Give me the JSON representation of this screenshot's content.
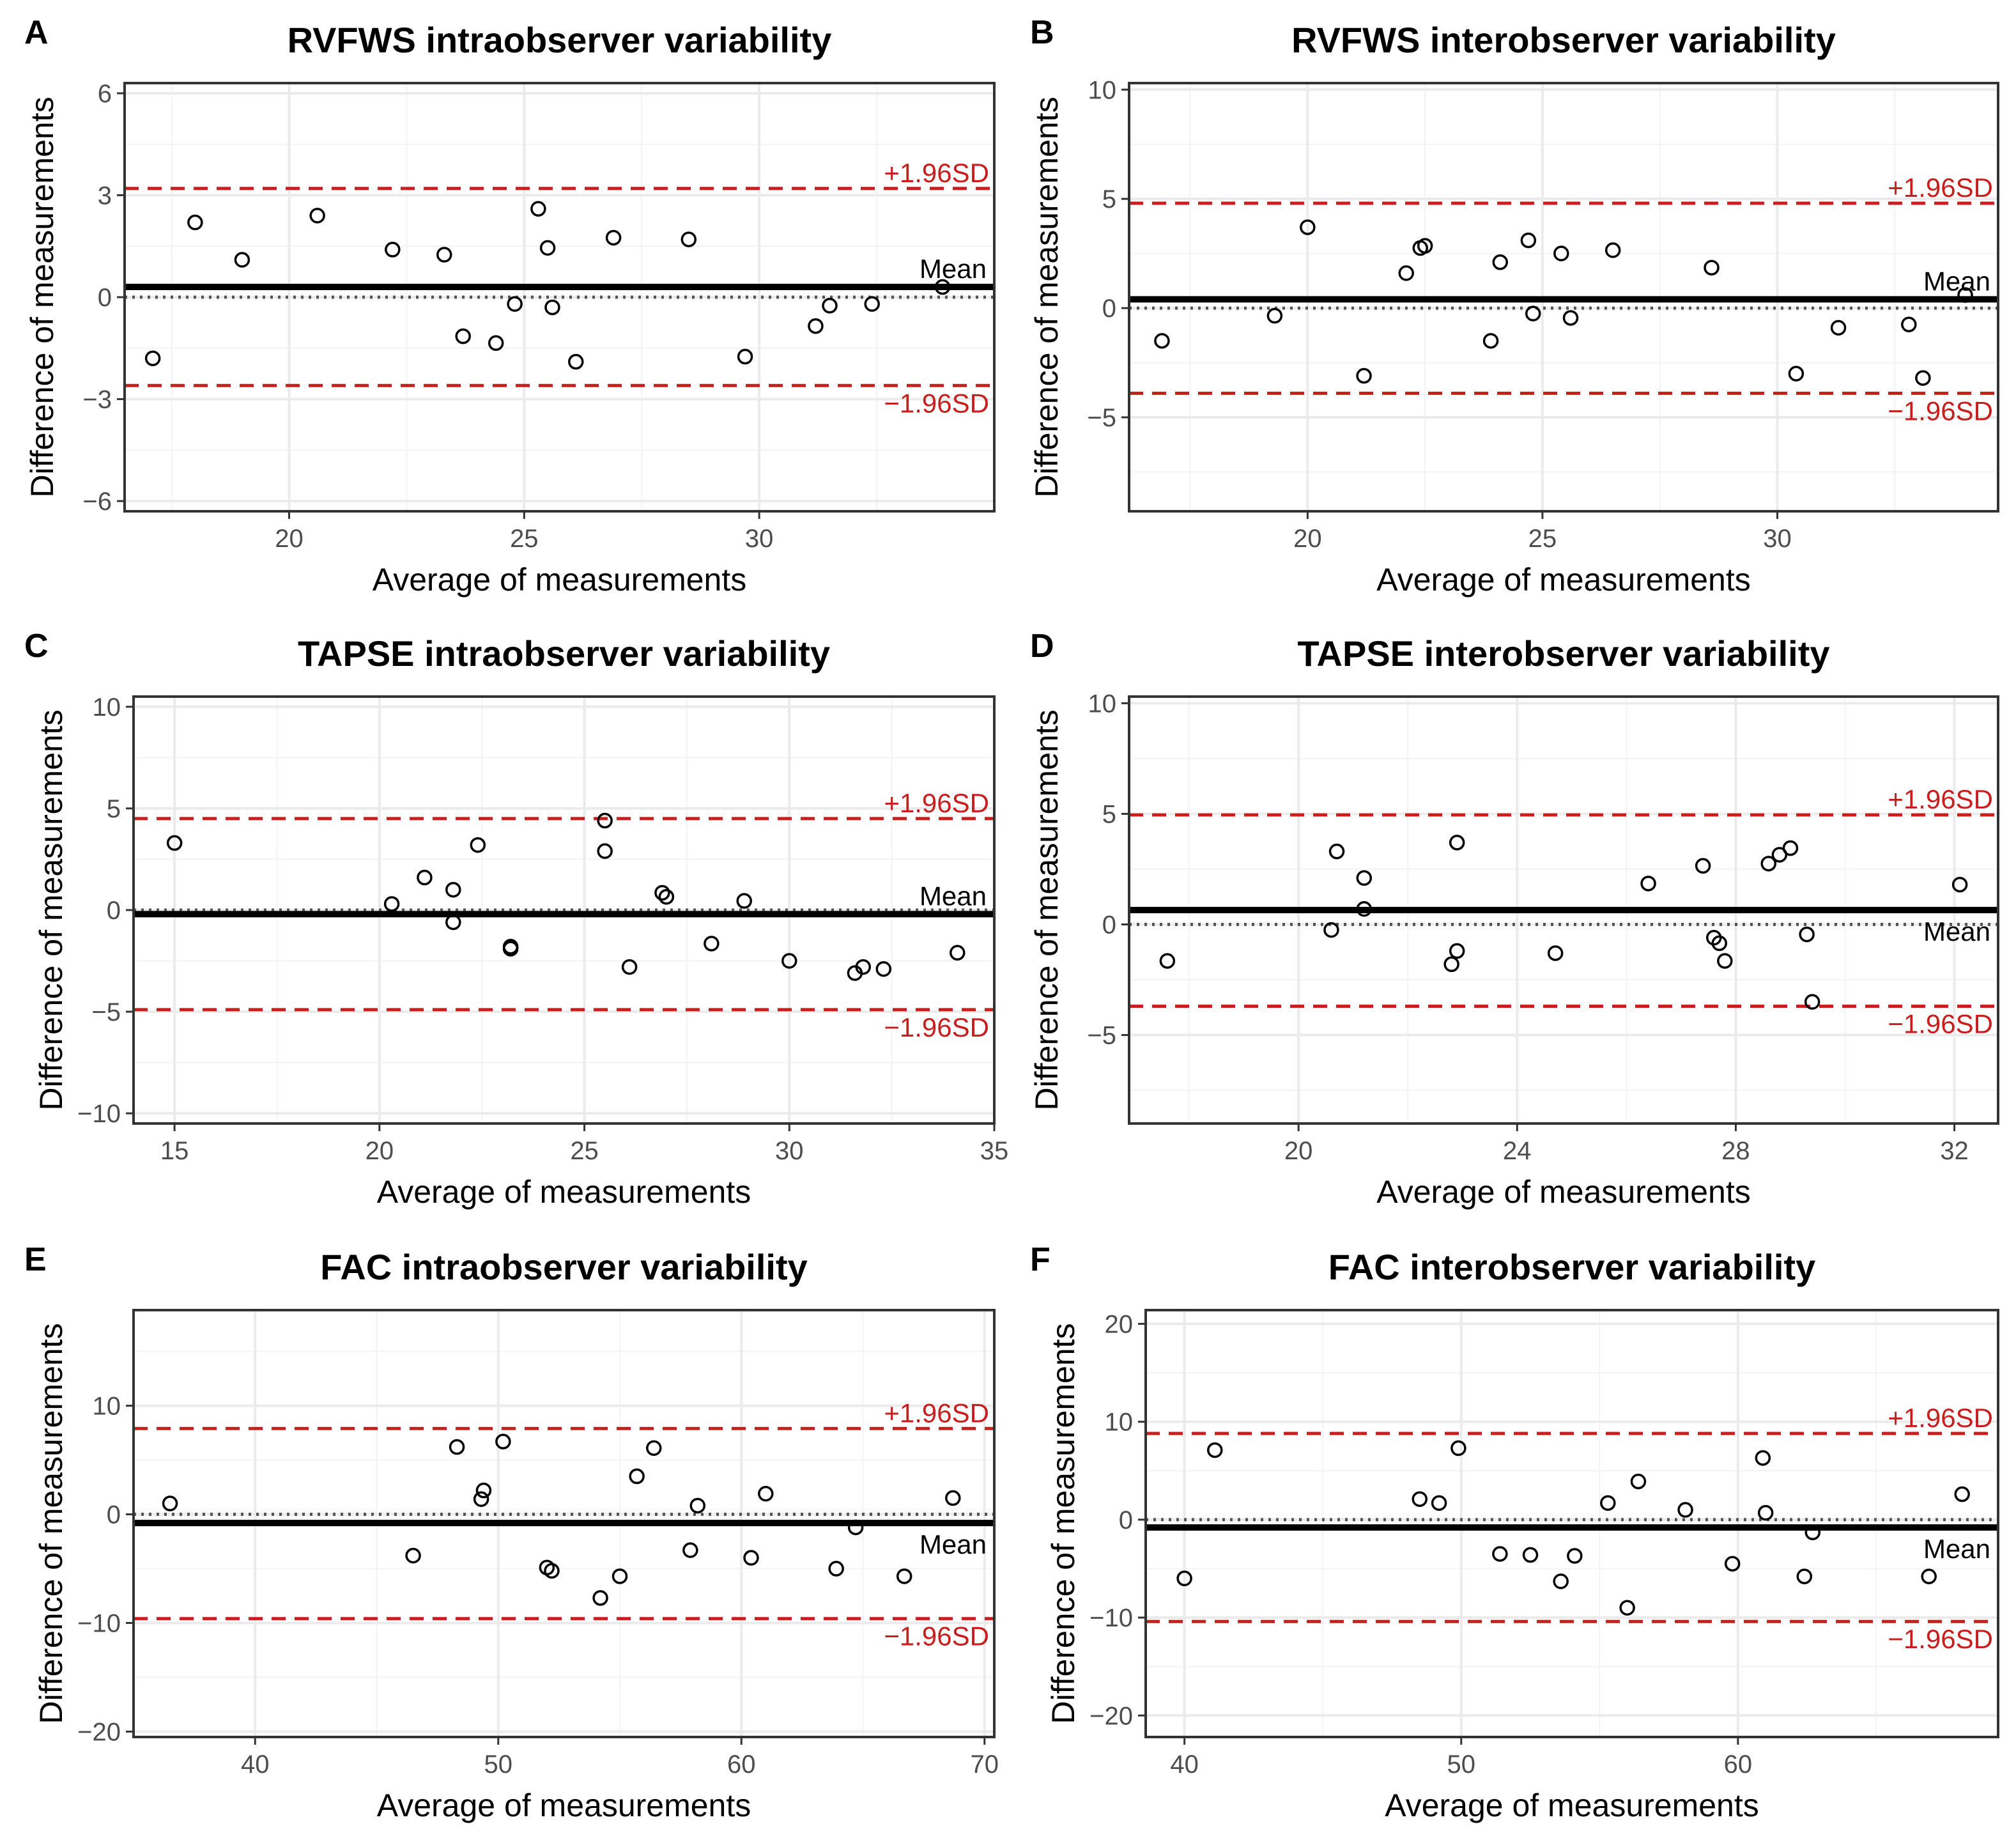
{
  "chart_data": [
    {
      "type": "scatter",
      "panel": "A",
      "title": "RVFWS intraobserver variability",
      "xlabel": "Average of measurements",
      "ylabel": "Difference of measurements",
      "xlim": [
        16.5,
        35
      ],
      "ylim": [
        -6.3,
        6.3
      ],
      "xticks": [
        20,
        25,
        30
      ],
      "yticks": [
        -6,
        -3,
        0,
        3,
        6
      ],
      "xtick_labels": [
        "20",
        "25",
        "30"
      ],
      "ytick_labels": [
        "−6",
        "−3",
        "0",
        "3",
        "6"
      ],
      "mean": 0.3,
      "upper_loa": 3.2,
      "lower_loa": -2.6,
      "label_upper": "+1.96SD",
      "label_lower": "−1.96SD",
      "label_mean": "Mean",
      "mean_label_pos": "above",
      "points": [
        {
          "x": 17.1,
          "y": -1.8
        },
        {
          "x": 18.0,
          "y": 2.2
        },
        {
          "x": 19.0,
          "y": 1.1
        },
        {
          "x": 20.6,
          "y": 2.4
        },
        {
          "x": 22.2,
          "y": 1.4
        },
        {
          "x": 23.3,
          "y": 1.25
        },
        {
          "x": 23.7,
          "y": -1.15
        },
        {
          "x": 24.4,
          "y": -1.35
        },
        {
          "x": 24.8,
          "y": -0.2
        },
        {
          "x": 25.3,
          "y": 2.6
        },
        {
          "x": 25.5,
          "y": 1.45
        },
        {
          "x": 25.6,
          "y": -0.3
        },
        {
          "x": 26.1,
          "y": -1.9
        },
        {
          "x": 26.9,
          "y": 1.75
        },
        {
          "x": 28.5,
          "y": 1.7
        },
        {
          "x": 29.7,
          "y": -1.75
        },
        {
          "x": 31.2,
          "y": -0.85
        },
        {
          "x": 31.5,
          "y": -0.25
        },
        {
          "x": 32.4,
          "y": -0.2
        },
        {
          "x": 33.9,
          "y": 0.3
        }
      ]
    },
    {
      "type": "scatter",
      "panel": "B",
      "title": "RVFWS interobserver variability",
      "xlabel": "Average of measurements",
      "ylabel": "Difference of measurements",
      "xlim": [
        16.2,
        34.7
      ],
      "ylim": [
        -9.3,
        10.3
      ],
      "xticks": [
        20,
        25,
        30
      ],
      "yticks": [
        -5,
        0,
        5,
        10
      ],
      "xtick_labels": [
        "20",
        "25",
        "30"
      ],
      "ytick_labels": [
        "−5",
        "0",
        "5",
        "10"
      ],
      "mean": 0.4,
      "upper_loa": 4.8,
      "lower_loa": -3.9,
      "label_upper": "+1.96SD",
      "label_lower": "−1.96SD",
      "label_mean": "Mean",
      "mean_label_pos": "above",
      "points": [
        {
          "x": 16.9,
          "y": -1.5
        },
        {
          "x": 19.3,
          "y": -0.35
        },
        {
          "x": 20.0,
          "y": 3.7
        },
        {
          "x": 21.2,
          "y": -3.1
        },
        {
          "x": 22.1,
          "y": 1.6
        },
        {
          "x": 22.4,
          "y": 2.75
        },
        {
          "x": 22.5,
          "y": 2.85
        },
        {
          "x": 23.9,
          "y": -1.5
        },
        {
          "x": 24.1,
          "y": 2.1
        },
        {
          "x": 24.7,
          "y": 3.1
        },
        {
          "x": 24.8,
          "y": -0.25
        },
        {
          "x": 25.4,
          "y": 2.5
        },
        {
          "x": 25.6,
          "y": -0.45
        },
        {
          "x": 26.5,
          "y": 2.65
        },
        {
          "x": 28.6,
          "y": 1.85
        },
        {
          "x": 30.4,
          "y": -3.0
        },
        {
          "x": 31.3,
          "y": -0.9
        },
        {
          "x": 32.8,
          "y": -0.75
        },
        {
          "x": 33.1,
          "y": -3.2
        },
        {
          "x": 34.0,
          "y": 0.6
        }
      ]
    },
    {
      "type": "scatter",
      "panel": "C",
      "title": "TAPSE intraobserver variability",
      "xlabel": "Average of measurements",
      "ylabel": "Difference of measurements",
      "xlim": [
        14.0,
        35.0
      ],
      "ylim": [
        -10.5,
        10.5
      ],
      "xticks": [
        15,
        20,
        25,
        30,
        35
      ],
      "yticks": [
        -10,
        -5,
        0,
        5,
        10
      ],
      "xtick_labels": [
        "15",
        "20",
        "25",
        "30",
        "35"
      ],
      "ytick_labels": [
        "−10",
        "−5",
        "0",
        "5",
        "10"
      ],
      "mean": -0.2,
      "upper_loa": 4.5,
      "lower_loa": -4.9,
      "label_upper": "+1.96SD",
      "label_lower": "−1.96SD",
      "label_mean": "Mean",
      "mean_label_pos": "above",
      "points": [
        {
          "x": 15.0,
          "y": 3.3
        },
        {
          "x": 20.3,
          "y": 0.3
        },
        {
          "x": 21.1,
          "y": 1.6
        },
        {
          "x": 21.8,
          "y": 1.0
        },
        {
          "x": 21.8,
          "y": -0.6
        },
        {
          "x": 22.4,
          "y": 3.2
        },
        {
          "x": 23.2,
          "y": -1.8
        },
        {
          "x": 23.2,
          "y": -1.9
        },
        {
          "x": 25.5,
          "y": 4.4
        },
        {
          "x": 25.5,
          "y": 2.9
        },
        {
          "x": 26.1,
          "y": -2.8
        },
        {
          "x": 26.9,
          "y": 0.85
        },
        {
          "x": 27.0,
          "y": 0.65
        },
        {
          "x": 28.1,
          "y": -1.65
        },
        {
          "x": 28.9,
          "y": 0.45
        },
        {
          "x": 30.0,
          "y": -2.5
        },
        {
          "x": 31.6,
          "y": -3.1
        },
        {
          "x": 31.8,
          "y": -2.8
        },
        {
          "x": 32.3,
          "y": -2.9
        },
        {
          "x": 34.1,
          "y": -2.1
        }
      ]
    },
    {
      "type": "scatter",
      "panel": "D",
      "title": "TAPSE interobserver variability",
      "xlabel": "Average of measurements",
      "ylabel": "Difference of measurements",
      "xlim": [
        16.9,
        32.8
      ],
      "ylim": [
        -9.0,
        10.3
      ],
      "xticks": [
        20,
        24,
        28,
        32
      ],
      "yticks": [
        -5,
        0,
        5,
        10
      ],
      "xtick_labels": [
        "20",
        "24",
        "28",
        "32"
      ],
      "ytick_labels": [
        "−5",
        "0",
        "5",
        "10"
      ],
      "mean": 0.65,
      "upper_loa": 4.95,
      "lower_loa": -3.7,
      "label_upper": "+1.96SD",
      "label_lower": "−1.96SD",
      "label_mean": "Mean",
      "mean_label_pos": "below",
      "points": [
        {
          "x": 17.6,
          "y": -1.65
        },
        {
          "x": 20.6,
          "y": -0.25
        },
        {
          "x": 20.7,
          "y": 3.3
        },
        {
          "x": 21.2,
          "y": 2.1
        },
        {
          "x": 21.2,
          "y": 0.7
        },
        {
          "x": 22.8,
          "y": -1.8
        },
        {
          "x": 22.9,
          "y": -1.2
        },
        {
          "x": 22.9,
          "y": 3.7
        },
        {
          "x": 24.7,
          "y": -1.3
        },
        {
          "x": 26.4,
          "y": 1.85
        },
        {
          "x": 27.4,
          "y": 2.65
        },
        {
          "x": 27.6,
          "y": -0.6
        },
        {
          "x": 27.7,
          "y": -0.85
        },
        {
          "x": 27.8,
          "y": -1.65
        },
        {
          "x": 28.6,
          "y": 2.75
        },
        {
          "x": 28.8,
          "y": 3.15
        },
        {
          "x": 29.0,
          "y": 3.45
        },
        {
          "x": 29.3,
          "y": -0.45
        },
        {
          "x": 29.4,
          "y": -3.5
        },
        {
          "x": 32.1,
          "y": 1.8
        }
      ]
    },
    {
      "type": "scatter",
      "panel": "E",
      "title": "FAC intraobserver variability",
      "xlabel": "Average of measurements",
      "ylabel": "Difference of measurements",
      "xlim": [
        35.0,
        70.4
      ],
      "ylim": [
        -20.5,
        18.8
      ],
      "xticks": [
        40,
        50,
        60,
        70
      ],
      "yticks": [
        -20,
        -10,
        0,
        10
      ],
      "xtick_labels": [
        "40",
        "50",
        "60",
        "70"
      ],
      "ytick_labels": [
        "−20",
        "−10",
        "0",
        "10"
      ],
      "mean": -0.8,
      "upper_loa": 7.9,
      "lower_loa": -9.6,
      "label_upper": "+1.96SD",
      "label_lower": "−1.96SD",
      "label_mean": "Mean",
      "mean_label_pos": "below",
      "points": [
        {
          "x": 36.5,
          "y": 1.0
        },
        {
          "x": 46.5,
          "y": -3.8
        },
        {
          "x": 48.3,
          "y": 6.2
        },
        {
          "x": 49.3,
          "y": 1.4
        },
        {
          "x": 49.4,
          "y": 2.2
        },
        {
          "x": 50.2,
          "y": 6.7
        },
        {
          "x": 52.0,
          "y": -4.9
        },
        {
          "x": 52.2,
          "y": -5.2
        },
        {
          "x": 54.2,
          "y": -7.7
        },
        {
          "x": 55.0,
          "y": -5.7
        },
        {
          "x": 55.7,
          "y": 3.5
        },
        {
          "x": 56.4,
          "y": 6.1
        },
        {
          "x": 57.9,
          "y": -3.3
        },
        {
          "x": 58.2,
          "y": 0.8
        },
        {
          "x": 60.4,
          "y": -4.0
        },
        {
          "x": 61.0,
          "y": 1.9
        },
        {
          "x": 63.9,
          "y": -5.0
        },
        {
          "x": 64.7,
          "y": -1.2
        },
        {
          "x": 66.7,
          "y": -5.7
        },
        {
          "x": 68.7,
          "y": 1.5
        }
      ]
    },
    {
      "type": "scatter",
      "panel": "F",
      "title": "FAC interobserver variability",
      "xlabel": "Average of measurements",
      "ylabel": "Difference of measurements",
      "xlim": [
        38.6,
        69.4
      ],
      "ylim": [
        -22.2,
        21.4
      ],
      "xticks": [
        40,
        50,
        60
      ],
      "yticks": [
        -20,
        -10,
        0,
        10,
        20
      ],
      "xtick_labels": [
        "40",
        "50",
        "60"
      ],
      "ytick_labels": [
        "−20",
        "−10",
        "0",
        "10",
        "20"
      ],
      "mean": -0.8,
      "upper_loa": 8.8,
      "lower_loa": -10.4,
      "label_upper": "+1.96SD",
      "label_lower": "−1.96SD",
      "label_mean": "Mean",
      "mean_label_pos": "below",
      "points": [
        {
          "x": 40.0,
          "y": -6.0
        },
        {
          "x": 41.1,
          "y": 7.1
        },
        {
          "x": 48.5,
          "y": 2.1
        },
        {
          "x": 49.2,
          "y": 1.7
        },
        {
          "x": 49.9,
          "y": 7.3
        },
        {
          "x": 51.4,
          "y": -3.5
        },
        {
          "x": 52.5,
          "y": -3.6
        },
        {
          "x": 53.6,
          "y": -6.3
        },
        {
          "x": 54.1,
          "y": -3.7
        },
        {
          "x": 55.3,
          "y": 1.7
        },
        {
          "x": 56.0,
          "y": -9.0
        },
        {
          "x": 56.4,
          "y": 3.9
        },
        {
          "x": 58.1,
          "y": 1.0
        },
        {
          "x": 59.8,
          "y": -4.5
        },
        {
          "x": 60.9,
          "y": 6.3
        },
        {
          "x": 61.0,
          "y": 0.7
        },
        {
          "x": 62.4,
          "y": -5.8
        },
        {
          "x": 62.7,
          "y": -1.3
        },
        {
          "x": 66.9,
          "y": -5.8
        },
        {
          "x": 68.1,
          "y": 2.6
        }
      ]
    }
  ]
}
